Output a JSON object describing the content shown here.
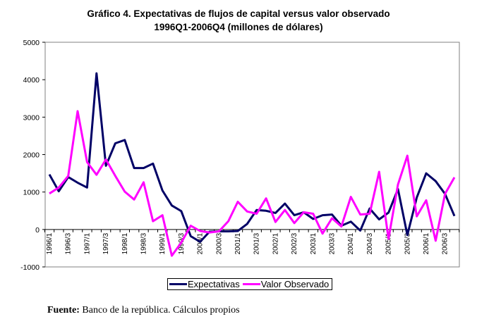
{
  "chart_data": {
    "type": "line",
    "title": "Gráfico 4. Expectativas de flujos de capital versus valor observado",
    "subtitle": "1996Q1-2006Q4 (millones de dólares)",
    "xlabel": "",
    "ylabel": "",
    "ylim": [
      -1000,
      5000
    ],
    "yticks": [
      "5000",
      "4000",
      "3000",
      "2000",
      "1000",
      "0",
      "-1000"
    ],
    "ytick_values": [
      5000,
      4000,
      3000,
      2000,
      1000,
      0,
      -1000
    ],
    "xtick_labels": [
      "1996/1",
      "1996/3",
      "1997/1",
      "1997/3",
      "1998/1",
      "1998/3",
      "1999/1",
      "1999/3",
      "2000/1",
      "2000/3",
      "2001/1",
      "2001/3",
      "2002/1",
      "2002/3",
      "2003/1",
      "2003/3",
      "2004/1",
      "2004/3",
      "2005/1",
      "2005/3",
      "2006/1",
      "2006/3"
    ],
    "grid": false,
    "legend_position": "bottom",
    "series": [
      {
        "name": "Expectativas",
        "color": "#000066",
        "values": [
          1470,
          1020,
          1400,
          1250,
          1120,
          4170,
          1700,
          2300,
          2390,
          1640,
          1640,
          1760,
          1040,
          640,
          490,
          -180,
          -330,
          -60,
          -50,
          -50,
          -40,
          150,
          520,
          500,
          440,
          690,
          380,
          460,
          280,
          380,
          400,
          100,
          210,
          -30,
          560,
          270,
          450,
          1080,
          -150,
          850,
          1500,
          1290,
          950,
          360
        ]
      },
      {
        "name": "Valor Observado",
        "color": "#ff00ff",
        "values": [
          960,
          1120,
          1430,
          3160,
          1800,
          1460,
          1870,
          1430,
          1010,
          800,
          1260,
          220,
          380,
          -700,
          -350,
          100,
          -40,
          -80,
          -50,
          220,
          740,
          480,
          420,
          830,
          200,
          520,
          170,
          460,
          420,
          -110,
          300,
          80,
          870,
          400,
          420,
          1540,
          -250,
          1200,
          1970,
          350,
          780,
          -300,
          950,
          1390
        ]
      }
    ]
  },
  "footer": {
    "label": "Fuente:",
    "text": " Banco de la república. Cálculos propios"
  }
}
